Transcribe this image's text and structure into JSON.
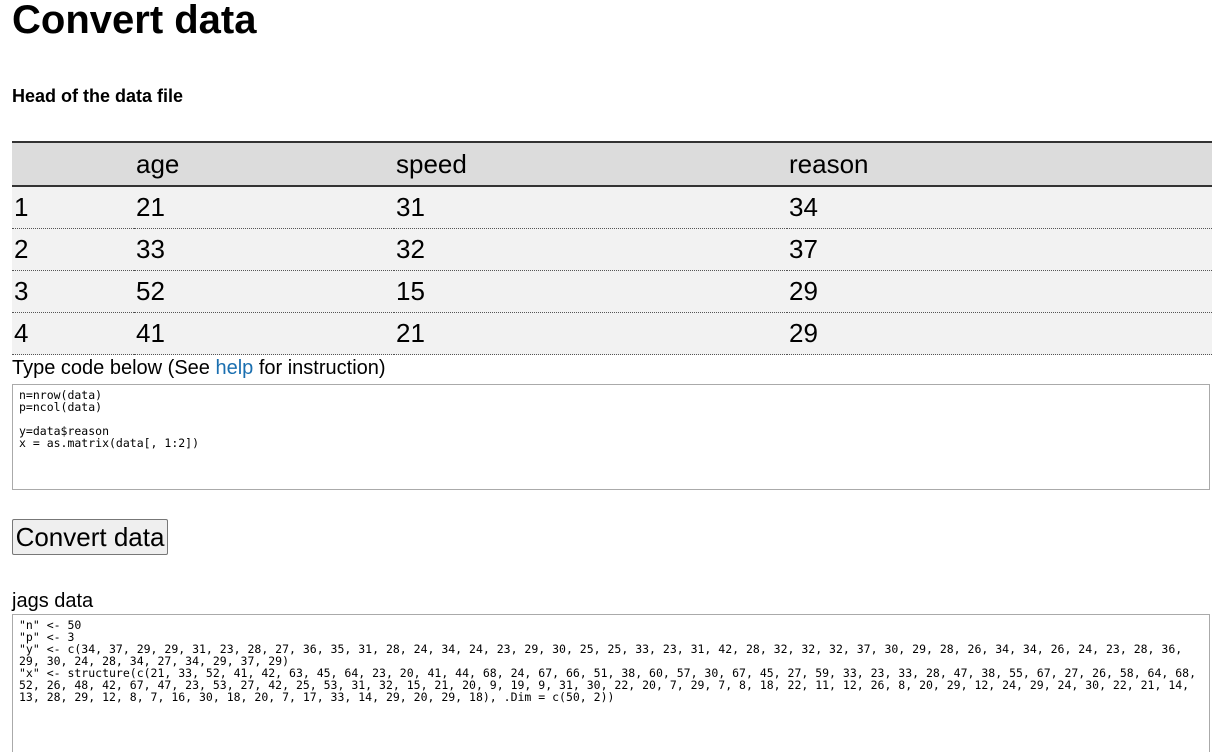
{
  "header": {
    "title": "Convert data",
    "subtitle": "Head of the data file"
  },
  "table": {
    "columns": [
      "age",
      "speed",
      "reason"
    ],
    "rows": [
      [
        "1",
        "21",
        "31",
        "34"
      ],
      [
        "2",
        "33",
        "32",
        "37"
      ],
      [
        "3",
        "52",
        "15",
        "29"
      ],
      [
        "4",
        "41",
        "21",
        "29"
      ]
    ]
  },
  "code_label": {
    "before": "Type code below (See ",
    "link": "help",
    "after": " for instruction)"
  },
  "code": "n=nrow(data)\np=ncol(data)\n\ny=data$reason\nx = as.matrix(data[, 1:2])",
  "button": "Convert data",
  "output_label": "jags data",
  "output": "\"n\" <- 50\n\"p\" <- 3\n\"y\" <- c(34, 37, 29, 29, 31, 23, 28, 27, 36, 35, 31, 28, 24, 34, 24, 23, 29, 30, 25, 25, 33, 23, 31, 42, 28, 32, 32, 32, 37, 30, 29, 28, 26, 34, 34, 26, 24, 23, 28, 36, 29, 30, 24, 28, 34, 27, 34, 29, 37, 29)\n\"x\" <- structure(c(21, 33, 52, 41, 42, 63, 45, 64, 23, 20, 41, 44, 68, 24, 67, 66, 51, 38, 60, 57, 30, 67, 45, 27, 59, 33, 23, 33, 28, 47, 38, 55, 67, 27, 26, 58, 64, 68, 52, 26, 48, 42, 67, 47, 23, 53, 27, 42, 25, 53, 31, 32, 15, 21, 20, 9, 19, 9, 31, 30, 22, 20, 7, 29, 7, 8, 18, 22, 11, 12, 26, 8, 20, 29, 12, 24, 29, 24, 30, 22, 21, 14, 13, 28, 29, 12, 8, 7, 16, 30, 18, 20, 7, 17, 33, 14, 29, 20, 29, 18), .Dim = c(50, 2))"
}
